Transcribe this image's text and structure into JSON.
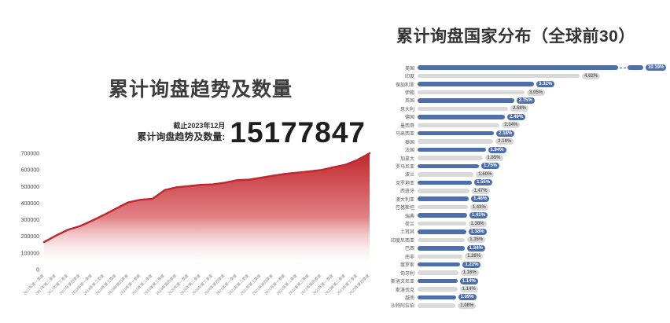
{
  "left_chart": {
    "title": "累计询盘趋势及数量",
    "stat_caption_line1": "截止2023年12月",
    "stat_caption_line2": "累计询盘趋势及数量:",
    "stat_value": "15177847"
  },
  "right_chart": {
    "title": "累计询盘国家分布（全球前30）"
  },
  "colors": {
    "area_line": "#c1272d",
    "area_fill_top": "#c1272d",
    "area_fill_mid": "#e08184",
    "area_fill_bottom": "#ffffff",
    "bar_blue": "#4d6fae",
    "bar_gray": "#d9d9d9"
  },
  "chart_data": [
    {
      "type": "area",
      "title": "累计询盘趋势及数量",
      "xlabel": "",
      "ylabel": "",
      "ylim": [
        0,
        700000
      ],
      "yticks": [
        700000,
        600000,
        500000,
        400000,
        300000,
        200000,
        100000,
        0
      ],
      "grid": false,
      "legend": "none",
      "x": [
        "2017年第一季度",
        "2017年第二季度",
        "2017年第三季度",
        "2017年第四季度",
        "2018年第一季度",
        "2018年第二季度",
        "2018年第三季度",
        "2018年第四季度",
        "2019年第一季度",
        "2019年第二季度",
        "2019年第三季度",
        "2019年第四季度",
        "2020年第一季度",
        "2020年第二季度",
        "2020年第三季度",
        "2020年第四季度",
        "2021年第一季度",
        "2021年第二季度",
        "2021年第三季度",
        "2021年第四季度",
        "2022年第一季度",
        "2022年第二季度",
        "2022年第三季度",
        "2022年第四季度",
        "2023年第一季度",
        "2023年第二季度",
        "2023年第三季度",
        "2023年第四季度"
      ],
      "values": [
        165000,
        205000,
        240000,
        262000,
        295000,
        330000,
        368000,
        405000,
        420000,
        426000,
        478000,
        495000,
        502000,
        510000,
        513000,
        523000,
        538000,
        541000,
        553000,
        565000,
        576000,
        583000,
        591000,
        599000,
        616000,
        631000,
        660000,
        700000
      ]
    },
    {
      "type": "bar",
      "title": "累计询盘国家分布（全球前30）",
      "orientation": "horizontal",
      "unit": "%",
      "axis_break_first_bar": true,
      "categories": [
        "美国",
        "印度",
        "保加利亚",
        "伊朗",
        "英国",
        "意大利",
        "德国",
        "墨西哥",
        "马来西亚",
        "泰国",
        "法国",
        "加拿大",
        "罗马尼亚",
        "波兰",
        "克罗地亚",
        "西班牙",
        "澳大利亚",
        "巴基斯坦",
        "瑞典",
        "荷兰",
        "土耳其",
        "印度尼西亚",
        "巴西",
        "南非",
        "俄罗斯",
        "匈牙利",
        "斯洛文尼亚",
        "斯洛伐克",
        "越南",
        "沙特阿拉伯"
      ],
      "values": [
        10.19,
        4.62,
        3.32,
        3.05,
        2.75,
        2.58,
        2.49,
        2.34,
        2.18,
        2.16,
        1.94,
        1.85,
        1.75,
        1.6,
        1.55,
        1.47,
        1.46,
        1.43,
        1.41,
        1.38,
        1.38,
        1.35,
        1.34,
        1.28,
        1.22,
        1.16,
        1.14,
        1.14,
        1.09,
        1.08
      ],
      "values_display": [
        "10.19%",
        "4.62%",
        "3.32%",
        "3.05%",
        "2.75%",
        "2.58%",
        "2.49%",
        "2.34%",
        "2.18%",
        "2.16%",
        "1.94%",
        "1.85%",
        "1.75%",
        "1.60%",
        "1.55%",
        "1.47%",
        "1.46%",
        "1.43%",
        "1.41%",
        "1.38%",
        "1.38%",
        "1.35%",
        "1.34%",
        "1.28%",
        "1.22%",
        "1.16%",
        "1.14%",
        "1.14%",
        "1.09%",
        "1.08%"
      ]
    }
  ]
}
